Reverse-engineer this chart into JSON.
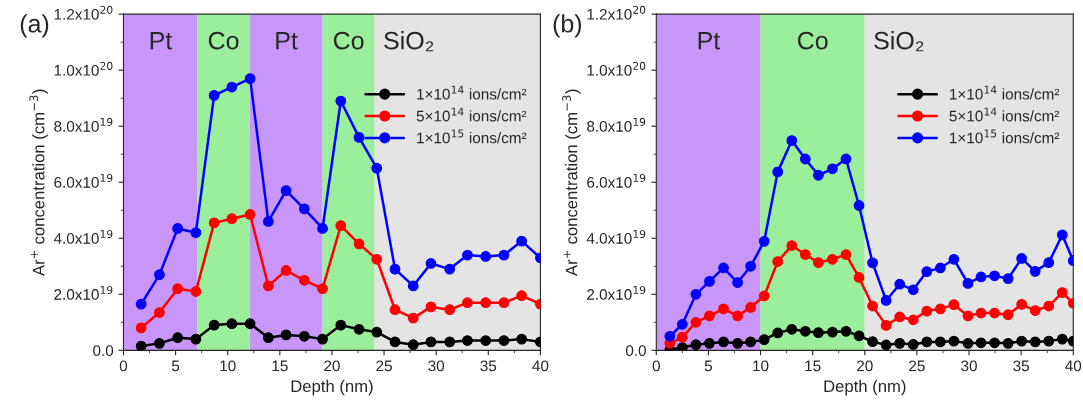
{
  "chart_data": [
    {
      "type": "line",
      "title": "(a)",
      "xlabel": "Depth (nm)",
      "ylabel": "Ar$^{+}$ concentration (cm$^{−3}$)",
      "xlim": [
        0,
        40
      ],
      "xticks": [
        0,
        5,
        10,
        15,
        20,
        25,
        30,
        35,
        40
      ],
      "ylim": [
        0,
        1.2e+20
      ],
      "yticks": [
        {
          "value": 0,
          "label": "0.0"
        },
        {
          "value": 2e+19,
          "label": "2.0x10$^{19}$"
        },
        {
          "value": 4e+19,
          "label": "4.0x10$^{19}$"
        },
        {
          "value": 6e+19,
          "label": "6.0x10$^{19}$"
        },
        {
          "value": 8e+19,
          "label": "8.0x10$^{19}$"
        },
        {
          "value": 1e+20,
          "label": "1.0x10$^{20}$"
        },
        {
          "value": 1.2e+20,
          "label": "1.2x10$^{20}$"
        }
      ],
      "x": [
        1.7,
        3.45,
        5.2,
        6.95,
        8.7,
        10.4,
        12.15,
        13.9,
        15.6,
        17.35,
        19.1,
        20.85,
        22.6,
        24.3,
        26.05,
        27.8,
        29.5,
        31.3,
        33.0,
        34.75,
        36.5,
        38.2,
        40.0
      ],
      "series": [
        {
          "name": "1×10$^{14}$ ions/cm²",
          "color": "#000000",
          "values": [
            1.5e+18,
            2.5e+18,
            4.5e+18,
            4e+18,
            9e+18,
            9.5e+18,
            9.5e+18,
            4.5e+18,
            5.5e+18,
            5e+18,
            4e+18,
            9e+18,
            7.5e+18,
            6.5e+18,
            3e+18,
            2e+18,
            3e+18,
            3e+18,
            3.5e+18,
            3.5e+18,
            3.5e+18,
            4e+18,
            3e+18
          ]
        },
        {
          "name": "5×10$^{14}$ ions/cm²",
          "color": "#ff0000",
          "values": [
            8e+18,
            1.35e+19,
            2.2e+19,
            2.1e+19,
            4.55e+19,
            4.7e+19,
            4.85e+19,
            2.3e+19,
            2.85e+19,
            2.5e+19,
            2.2e+19,
            4.45e+19,
            3.8e+19,
            3.25e+19,
            1.45e+19,
            1.15e+19,
            1.55e+19,
            1.45e+19,
            1.7e+19,
            1.7e+19,
            1.7e+19,
            1.95e+19,
            1.65e+19
          ]
        },
        {
          "name": "1×10$^{15}$ ions/cm²",
          "color": "#0000ff",
          "values": [
            1.65e+19,
            2.7e+19,
            4.35e+19,
            4.2e+19,
            9.1e+19,
            9.4e+19,
            9.7e+19,
            4.6e+19,
            5.7e+19,
            5.05e+19,
            4.35e+19,
            8.9e+19,
            7.6e+19,
            6.5e+19,
            2.9e+19,
            2.3e+19,
            3.1e+19,
            2.9e+19,
            3.4e+19,
            3.35e+19,
            3.4e+19,
            3.9e+19,
            3.3e+19
          ]
        }
      ],
      "bands": [
        {
          "axis": "x",
          "from": 0,
          "to": 7.1,
          "label": "Pt",
          "color": "#c896f8"
        },
        {
          "axis": "x",
          "from": 7.1,
          "to": 12.1,
          "label": "Co",
          "color": "#9bef9b"
        },
        {
          "axis": "x",
          "from": 12.1,
          "to": 19.1,
          "label": "Pt",
          "color": "#c896f8"
        },
        {
          "axis": "x",
          "from": 19.1,
          "to": 24.1,
          "label": "Co",
          "color": "#9bef9b"
        },
        {
          "axis": "x",
          "from": 24.1,
          "to": 40,
          "label": "SiO₂",
          "color": "#e4e4e4"
        }
      ],
      "marker": "circle",
      "line_style": "solid",
      "legend": "top right",
      "grid": false
    },
    {
      "type": "line",
      "title": "(b)",
      "xlabel": "Depth (nm)",
      "ylabel": "Ar$^{+}$ concentration (cm$^{−3}$)",
      "xlim": [
        0,
        40
      ],
      "xticks": [
        0,
        5,
        10,
        15,
        20,
        25,
        30,
        35,
        40
      ],
      "ylim": [
        0,
        1.2e+20
      ],
      "yticks": [
        {
          "value": 0,
          "label": "0.0"
        },
        {
          "value": 2e+19,
          "label": "2.0x10$^{19}$"
        },
        {
          "value": 4e+19,
          "label": "4.0x10$^{19}$"
        },
        {
          "value": 6e+19,
          "label": "6.0x10$^{19}$"
        },
        {
          "value": 8e+19,
          "label": "8.0x10$^{19}$"
        },
        {
          "value": 1e+20,
          "label": "1.0x10$^{20}$"
        },
        {
          "value": 1.2e+20,
          "label": "1.2x10$^{20}$"
        }
      ],
      "x": [
        1.3,
        2.5,
        3.8,
        5.1,
        6.45,
        7.8,
        9.05,
        10.35,
        11.65,
        13.0,
        14.3,
        15.55,
        16.9,
        18.2,
        19.45,
        20.75,
        22.05,
        23.35,
        24.65,
        25.95,
        27.25,
        28.55,
        29.9,
        31.15,
        32.45,
        33.75,
        35.05,
        36.35,
        37.65,
        38.95,
        40.0
      ],
      "series": [
        {
          "name": "1×10$^{14}$ ions/cm²",
          "color": "#000000",
          "values": [
            2e+17,
            1e+18,
            2e+18,
            2.5e+18,
            3e+18,
            2.5e+18,
            3e+18,
            3.8e+18,
            6.2e+18,
            7.5e+18,
            6.8e+18,
            6.3e+18,
            6.5e+18,
            6.8e+18,
            5.2e+18,
            3.1e+18,
            1.9e+18,
            2.5e+18,
            2.1e+18,
            3e+18,
            3e+18,
            3.3e+18,
            2.5e+18,
            2.7e+18,
            2.7e+18,
            2.5e+18,
            3.3e+18,
            3e+18,
            3.3e+18,
            4e+18,
            3.3e+18
          ]
        },
        {
          "name": "5×10$^{14}$ ions/cm²",
          "color": "#ff0000",
          "values": [
            2.5e+18,
            4.7e+18,
            1e+19,
            1.23e+19,
            1.48e+19,
            1.23e+19,
            1.53e+19,
            1.94e+19,
            3.17e+19,
            3.74e+19,
            3.42e+19,
            3.13e+19,
            3.25e+19,
            3.42e+19,
            2.6e+19,
            1.58e+19,
            8.9e+18,
            1.19e+19,
            1.09e+19,
            1.4e+19,
            1.48e+19,
            1.63e+19,
            1.23e+19,
            1.33e+19,
            1.33e+19,
            1.27e+19,
            1.64e+19,
            1.42e+19,
            1.58e+19,
            2.06e+19,
            1.68e+19
          ]
        },
        {
          "name": "1×10$^{15}$ ions/cm²",
          "color": "#0000ff",
          "values": [
            5e+18,
            9.3e+18,
            2e+19,
            2.46e+19,
            2.94e+19,
            2.42e+19,
            3e+19,
            3.89e+19,
            6.37e+19,
            7.49e+19,
            6.83e+19,
            6.25e+19,
            6.48e+19,
            6.83e+19,
            5.17e+19,
            3.12e+19,
            1.78e+19,
            2.36e+19,
            2.16e+19,
            2.81e+19,
            2.94e+19,
            3.25e+19,
            2.39e+19,
            2.62e+19,
            2.66e+19,
            2.56e+19,
            3.28e+19,
            2.82e+19,
            3.13e+19,
            4.12e+19,
            3.2e+19
          ]
        }
      ],
      "bands": [
        {
          "axis": "x",
          "from": 0,
          "to": 10,
          "label": "Pt",
          "color": "#c896f8"
        },
        {
          "axis": "x",
          "from": 10,
          "to": 20,
          "label": "Co",
          "color": "#9bef9b"
        },
        {
          "axis": "x",
          "from": 20,
          "to": 40,
          "label": "SiO₂",
          "color": "#e4e4e4"
        }
      ],
      "marker": "circle",
      "line_style": "solid",
      "legend": "top right",
      "grid": false
    }
  ]
}
